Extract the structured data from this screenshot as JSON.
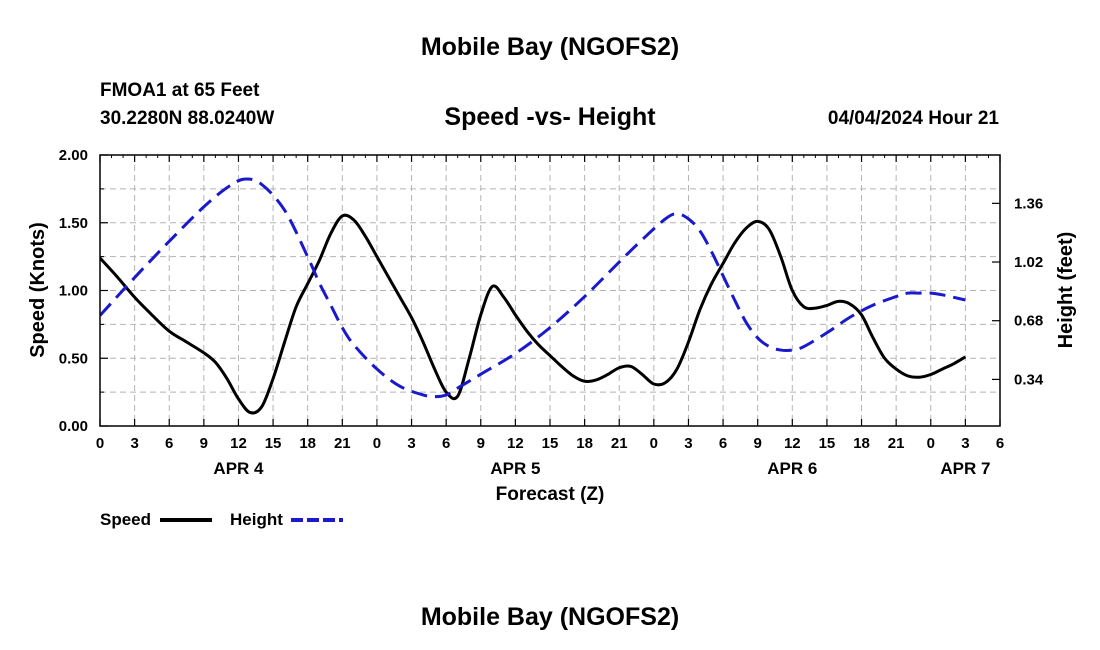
{
  "page": {
    "title_top": "Mobile Bay (NGOFS2)",
    "title_bottom": "Mobile Bay (NGOFS2)",
    "station": "FMOA1 at 65 Feet",
    "coords": "30.2280N  88.0240W",
    "timestamp": "04/04/2024 Hour 21"
  },
  "colors": {
    "speed": "#000000",
    "height": "#1a1acc",
    "grid": "#b4b4b4"
  },
  "chart_data": {
    "type": "line",
    "title": "Speed -vs- Height",
    "xlabel": "Forecast (Z)",
    "ylabel": "Speed (Knots)",
    "y2label": "Height (feet)",
    "x_range": [
      0,
      78
    ],
    "x_unit": "hours from APR 4 00Z",
    "ylim": [
      0,
      2.0
    ],
    "y2lim": [
      0.07,
      1.64
    ],
    "x_tick_values": [
      0,
      3,
      6,
      9,
      12,
      15,
      18,
      21,
      24,
      27,
      30,
      33,
      36,
      39,
      42,
      45,
      48,
      51,
      54,
      57,
      60,
      63,
      66,
      69,
      72,
      75,
      78
    ],
    "x_tick_labels": [
      "0",
      "3",
      "6",
      "9",
      "12",
      "15",
      "18",
      "21",
      "0",
      "3",
      "6",
      "9",
      "12",
      "15",
      "18",
      "21",
      "0",
      "3",
      "6",
      "9",
      "12",
      "15",
      "18",
      "21",
      "0",
      "3",
      "6"
    ],
    "date_labels": [
      {
        "x": 12,
        "label": "APR 4"
      },
      {
        "x": 36,
        "label": "APR 5"
      },
      {
        "x": 60,
        "label": "APR 6"
      },
      {
        "x": 75,
        "label": "APR 7"
      }
    ],
    "y_ticks": [
      {
        "v": 0,
        "label": "0.00"
      },
      {
        "v": 0.5,
        "label": "0.50"
      },
      {
        "v": 1.0,
        "label": "1.00"
      },
      {
        "v": 1.5,
        "label": "1.50"
      },
      {
        "v": 2.0,
        "label": "2.00"
      }
    ],
    "y2_ticks": [
      {
        "v": 0.34,
        "label": "0.34"
      },
      {
        "v": 0.68,
        "label": "0.68"
      },
      {
        "v": 1.02,
        "label": "1.02"
      },
      {
        "v": 1.36,
        "label": "1.36"
      }
    ],
    "legend": {
      "position": "bottom-left",
      "entries": [
        "Speed",
        "Height"
      ]
    },
    "series": [
      {
        "name": "Speed",
        "axis": "left",
        "style": "solid",
        "points": [
          [
            0,
            1.24
          ],
          [
            1.5,
            1.1
          ],
          [
            3,
            0.95
          ],
          [
            4.5,
            0.82
          ],
          [
            6,
            0.7
          ],
          [
            7.5,
            0.62
          ],
          [
            9,
            0.54
          ],
          [
            10,
            0.47
          ],
          [
            11,
            0.35
          ],
          [
            12,
            0.2
          ],
          [
            13,
            0.1
          ],
          [
            14,
            0.14
          ],
          [
            15,
            0.35
          ],
          [
            16,
            0.62
          ],
          [
            17,
            0.88
          ],
          [
            18,
            1.05
          ],
          [
            19,
            1.22
          ],
          [
            20,
            1.42
          ],
          [
            21,
            1.55
          ],
          [
            22,
            1.52
          ],
          [
            23,
            1.4
          ],
          [
            24,
            1.25
          ],
          [
            25,
            1.1
          ],
          [
            26,
            0.95
          ],
          [
            27,
            0.8
          ],
          [
            28,
            0.62
          ],
          [
            29,
            0.42
          ],
          [
            30,
            0.25
          ],
          [
            31,
            0.22
          ],
          [
            32,
            0.5
          ],
          [
            33,
            0.82
          ],
          [
            34,
            1.03
          ],
          [
            35,
            0.95
          ],
          [
            36,
            0.82
          ],
          [
            37,
            0.7
          ],
          [
            38,
            0.6
          ],
          [
            39,
            0.52
          ],
          [
            40,
            0.44
          ],
          [
            41,
            0.37
          ],
          [
            42,
            0.33
          ],
          [
            43,
            0.34
          ],
          [
            44,
            0.38
          ],
          [
            45,
            0.43
          ],
          [
            46,
            0.44
          ],
          [
            47,
            0.38
          ],
          [
            48,
            0.31
          ],
          [
            49,
            0.32
          ],
          [
            50,
            0.42
          ],
          [
            51,
            0.62
          ],
          [
            52,
            0.86
          ],
          [
            53,
            1.05
          ],
          [
            54,
            1.2
          ],
          [
            55,
            1.35
          ],
          [
            56,
            1.46
          ],
          [
            57,
            1.51
          ],
          [
            58,
            1.45
          ],
          [
            59,
            1.25
          ],
          [
            60,
            1.0
          ],
          [
            61,
            0.88
          ],
          [
            62,
            0.87
          ],
          [
            63,
            0.89
          ],
          [
            64,
            0.92
          ],
          [
            65,
            0.9
          ],
          [
            66,
            0.82
          ],
          [
            67,
            0.65
          ],
          [
            68,
            0.5
          ],
          [
            69,
            0.42
          ],
          [
            70,
            0.37
          ],
          [
            71,
            0.36
          ],
          [
            72,
            0.38
          ],
          [
            73,
            0.42
          ],
          [
            74,
            0.46
          ],
          [
            75,
            0.51
          ]
        ]
      },
      {
        "name": "Height",
        "axis": "right",
        "style": "dashed",
        "points": [
          [
            0,
            0.71
          ],
          [
            3,
            0.93
          ],
          [
            6,
            1.14
          ],
          [
            9,
            1.34
          ],
          [
            11,
            1.45
          ],
          [
            12.5,
            1.5
          ],
          [
            14,
            1.47
          ],
          [
            16,
            1.32
          ],
          [
            18,
            1.05
          ],
          [
            19,
            0.9
          ],
          [
            20,
            0.77
          ],
          [
            21,
            0.64
          ],
          [
            22,
            0.54
          ],
          [
            24,
            0.4
          ],
          [
            26,
            0.3
          ],
          [
            28,
            0.25
          ],
          [
            29,
            0.24
          ],
          [
            30,
            0.25
          ],
          [
            31,
            0.29
          ],
          [
            33,
            0.37
          ],
          [
            36,
            0.49
          ],
          [
            39,
            0.64
          ],
          [
            42,
            0.82
          ],
          [
            45,
            1.02
          ],
          [
            47,
            1.15
          ],
          [
            49,
            1.27
          ],
          [
            50,
            1.3
          ],
          [
            51,
            1.27
          ],
          [
            52,
            1.2
          ],
          [
            53,
            1.08
          ],
          [
            54,
            0.94
          ],
          [
            55,
            0.8
          ],
          [
            56,
            0.67
          ],
          [
            57,
            0.58
          ],
          [
            58,
            0.53
          ],
          [
            59,
            0.51
          ],
          [
            60,
            0.51
          ],
          [
            61,
            0.53
          ],
          [
            63,
            0.61
          ],
          [
            65,
            0.7
          ],
          [
            67,
            0.77
          ],
          [
            69,
            0.82
          ],
          [
            70,
            0.84
          ],
          [
            71,
            0.84
          ],
          [
            72,
            0.84
          ],
          [
            73,
            0.83
          ],
          [
            75,
            0.8
          ]
        ]
      }
    ]
  }
}
